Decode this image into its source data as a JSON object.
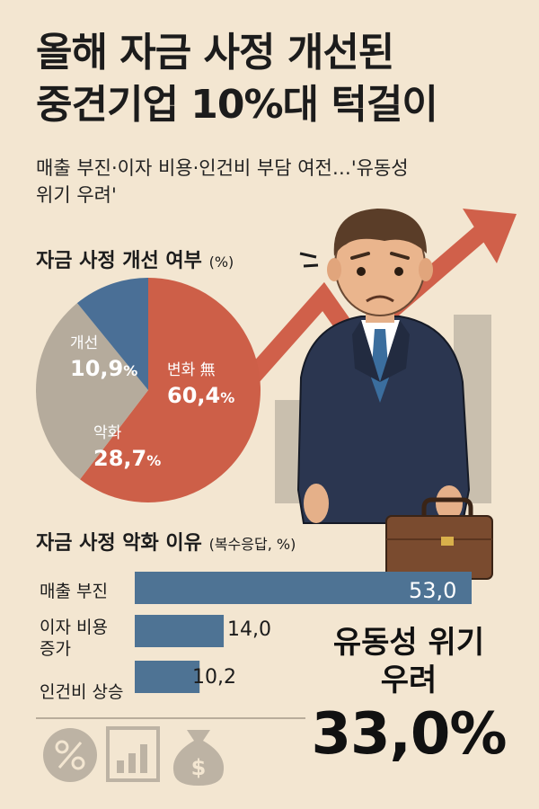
{
  "title": {
    "line1": "올해 자금 사정 개선된",
    "line2": "중견기업 10%대 턱걸이"
  },
  "subtitle": {
    "line1": "매출 부진·이자 비용·인건비 부담 여전…'유동성",
    "line2": "위기 우려'"
  },
  "section1": {
    "title": "자금 사정 개선 여부",
    "unit": "(%)"
  },
  "section2": {
    "title": "자금 사정 악화 이유",
    "unit": "(복수응답, %)"
  },
  "highlight": {
    "line1": "유동성 위기",
    "line2": "우려",
    "value": "33,0%"
  },
  "colors": {
    "improved": "#4a6f96",
    "nochange": "#cd5f48",
    "worse": "#b5ab9c",
    "bar": "#4e7394",
    "arrow": "#d0604a",
    "background": "#f3e6d1"
  },
  "icons": [
    "percent-icon",
    "bar-chart-icon",
    "money-bag-icon",
    "rising-arrow-icon",
    "businessman-illustration",
    "briefcase-icon"
  ],
  "chart_data": [
    {
      "type": "pie",
      "title": "자금 사정 개선 여부",
      "unit": "%",
      "slices": [
        {
          "label": "개선",
          "value": 10.9,
          "display": "10,9",
          "color": "#4a6f96"
        },
        {
          "label": "변화 無",
          "value": 60.4,
          "display": "60,4",
          "color": "#cd5f48"
        },
        {
          "label": "악화",
          "value": 28.7,
          "display": "28,7",
          "color": "#b5ab9c"
        }
      ]
    },
    {
      "type": "bar",
      "orientation": "horizontal",
      "title": "자금 사정 악화 이유",
      "unit": "복수응답, %",
      "categories": [
        "매출 부진",
        "이자 비용 증가",
        "인건비 상승"
      ],
      "category_lines": [
        [
          "매출 부진"
        ],
        [
          "이자 비용",
          "증가"
        ],
        [
          "인건비 상승"
        ]
      ],
      "values": [
        53.0,
        14.0,
        10.2
      ],
      "display": [
        "53,0",
        "14,0",
        "10,2"
      ]
    }
  ]
}
